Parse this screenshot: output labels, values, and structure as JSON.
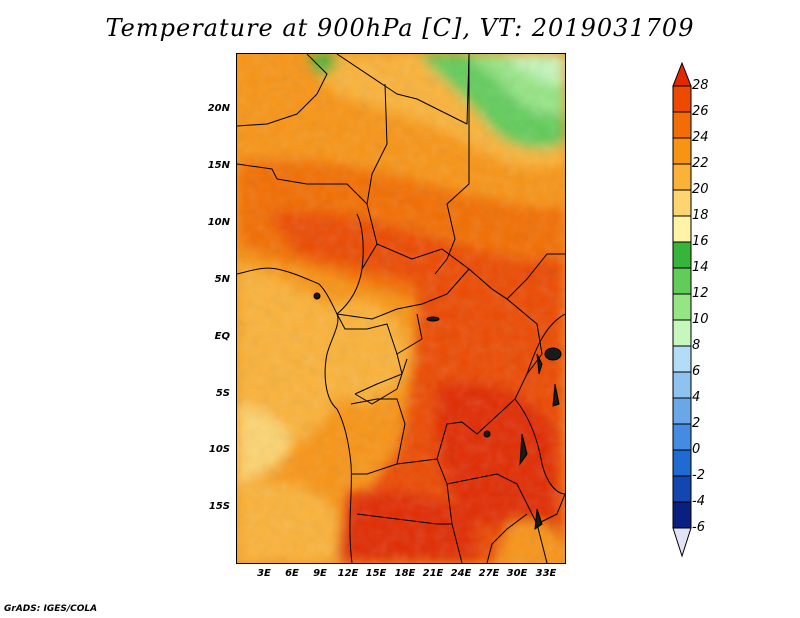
{
  "title": "Temperature at 900hPa [C], VT: 2019031709",
  "credit": "GrADS: IGES/COLA",
  "map": {
    "lon_range": [
      0,
      35
    ],
    "lat_range": [
      -20,
      24
    ],
    "lat_labels": [
      {
        "lat": 20,
        "text": "20N"
      },
      {
        "lat": 15,
        "text": "15N"
      },
      {
        "lat": 10,
        "text": "10N"
      },
      {
        "lat": 5,
        "text": "5N"
      },
      {
        "lat": 0,
        "text": "EQ"
      },
      {
        "lat": -5,
        "text": "5S"
      },
      {
        "lat": -10,
        "text": "10S"
      },
      {
        "lat": -15,
        "text": "15S"
      }
    ],
    "lon_labels": [
      {
        "lon": 3,
        "text": "3E"
      },
      {
        "lon": 6,
        "text": "6E"
      },
      {
        "lon": 9,
        "text": "9E"
      },
      {
        "lon": 12,
        "text": "12E"
      },
      {
        "lon": 15,
        "text": "15E"
      },
      {
        "lon": 18,
        "text": "18E"
      },
      {
        "lon": 21,
        "text": "21E"
      },
      {
        "lon": 24,
        "text": "24E"
      },
      {
        "lon": 27,
        "text": "27E"
      },
      {
        "lon": 30,
        "text": "30E"
      },
      {
        "lon": 33,
        "text": "33E"
      }
    ]
  },
  "colorbar": {
    "labels": [
      "28",
      "26",
      "24",
      "22",
      "20",
      "18",
      "16",
      "14",
      "12",
      "10",
      "8",
      "6",
      "4",
      "2",
      "0",
      "-2",
      "-4",
      "-6"
    ],
    "colors": [
      "#e12a00",
      "#ec4a00",
      "#f36d06",
      "#f89414",
      "#fbb238",
      "#fdd470",
      "#fff3a8",
      "#37b43a",
      "#61cc5a",
      "#96e585",
      "#c6f7bd",
      "#b3dcf6",
      "#8ec3ef",
      "#6aa7e6",
      "#448be1",
      "#1f6bd2",
      "#1346b0",
      "#0a2080",
      "#e3e3f6"
    ]
  }
}
